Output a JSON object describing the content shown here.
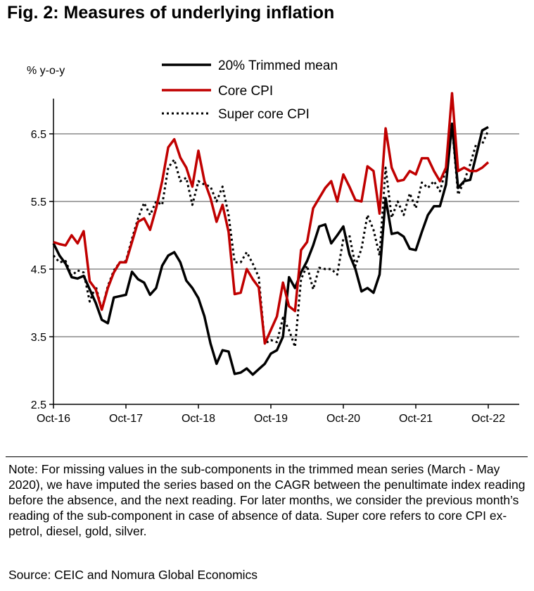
{
  "figure": {
    "title": "Fig. 2: Measures of underlying inflation",
    "note": "Note: For missing values in the sub-components in the trimmed mean series (March - May 2020), we have imputed the series based on the CAGR between the penultimate index reading before the absence, and the next reading. For later months, we consider the previous month’s reading of the sub-component in case of absence of data. Super core refers to core CPI ex-petrol, diesel, gold, silver.",
    "source": "Source: CEIC and Nomura Global Economics"
  },
  "chart_data": {
    "type": "line",
    "title": "",
    "ylabel": "% y-o-y",
    "xlabel": "",
    "ylim": [
      2.5,
      7.2
    ],
    "yticks": [
      2.5,
      3.5,
      4.5,
      5.5,
      6.5
    ],
    "ytick_labels": [
      "2.5",
      "3.5",
      "4.5",
      "5.5",
      "6.5"
    ],
    "xtick_index": [
      0,
      12,
      24,
      36,
      48,
      60,
      72
    ],
    "xtick_labels": [
      "Oct-16",
      "Oct-17",
      "Oct-18",
      "Oct-19",
      "Oct-20",
      "Oct-21",
      "Oct-22"
    ],
    "grid": "horizontal",
    "legend_position": "top",
    "series": [
      {
        "name": "20% Trimmed mean",
        "color": "#000000",
        "style": "solid",
        "values": [
          4.88,
          4.7,
          4.58,
          4.38,
          4.36,
          4.4,
          4.2,
          4.0,
          3.75,
          3.7,
          4.08,
          4.1,
          4.12,
          4.46,
          4.35,
          4.3,
          4.12,
          4.22,
          4.55,
          4.7,
          4.75,
          4.6,
          4.33,
          4.22,
          4.07,
          3.8,
          3.4,
          3.1,
          3.3,
          3.28,
          2.95,
          2.97,
          3.03,
          2.94,
          3.02,
          3.1,
          3.25,
          3.3,
          3.5,
          4.38,
          4.22,
          4.45,
          4.62,
          4.85,
          5.13,
          5.16,
          4.88,
          5.0,
          5.13,
          4.72,
          4.5,
          4.17,
          4.22,
          4.15,
          4.42,
          5.55,
          5.02,
          5.04,
          4.98,
          4.8,
          4.78,
          5.05,
          5.3,
          5.43,
          5.43,
          5.75,
          6.65,
          5.7,
          5.8,
          5.82,
          6.18,
          6.55,
          6.6
        ]
      },
      {
        "name": "Core CPI",
        "color": "#c00000",
        "style": "solid",
        "values": [
          4.9,
          4.87,
          4.85,
          5.0,
          4.88,
          5.06,
          4.32,
          4.2,
          3.9,
          4.22,
          4.45,
          4.6,
          4.6,
          4.9,
          5.2,
          5.25,
          5.08,
          5.4,
          5.8,
          6.3,
          6.42,
          6.15,
          6.0,
          5.72,
          6.25,
          5.8,
          5.55,
          5.2,
          5.45,
          5.05,
          4.13,
          4.15,
          4.5,
          4.35,
          4.23,
          3.4,
          3.6,
          3.8,
          4.3,
          3.95,
          3.88,
          4.78,
          4.9,
          5.4,
          5.55,
          5.7,
          5.8,
          5.5,
          5.9,
          5.72,
          5.52,
          5.5,
          6.02,
          5.95,
          5.32,
          6.58,
          6.0,
          5.8,
          5.82,
          5.95,
          5.9,
          6.14,
          6.14,
          5.95,
          5.8,
          6.0,
          7.1,
          5.95,
          6.0,
          5.95,
          5.95,
          6.0,
          6.08
        ]
      },
      {
        "name": "Super core CPI",
        "color": "#000000",
        "style": "dotted",
        "values": [
          4.7,
          4.6,
          4.62,
          4.4,
          4.48,
          4.45,
          4.02,
          4.25,
          3.9,
          4.25,
          4.48,
          4.6,
          4.62,
          4.95,
          5.25,
          5.48,
          5.3,
          5.5,
          5.45,
          6.0,
          6.12,
          5.8,
          5.85,
          5.45,
          5.8,
          5.75,
          5.72,
          5.5,
          5.72,
          5.3,
          4.6,
          4.6,
          4.75,
          4.58,
          4.38,
          3.4,
          3.45,
          3.42,
          3.78,
          3.6,
          3.35,
          4.35,
          4.55,
          4.2,
          4.52,
          4.5,
          4.5,
          4.42,
          4.95,
          5.0,
          4.55,
          4.8,
          5.3,
          5.08,
          4.7,
          6.0,
          5.26,
          5.5,
          5.3,
          5.62,
          5.4,
          5.78,
          5.7,
          5.8,
          5.65,
          5.98,
          6.62,
          5.6,
          5.8,
          6.05,
          6.35,
          6.35,
          6.55
        ]
      }
    ]
  }
}
